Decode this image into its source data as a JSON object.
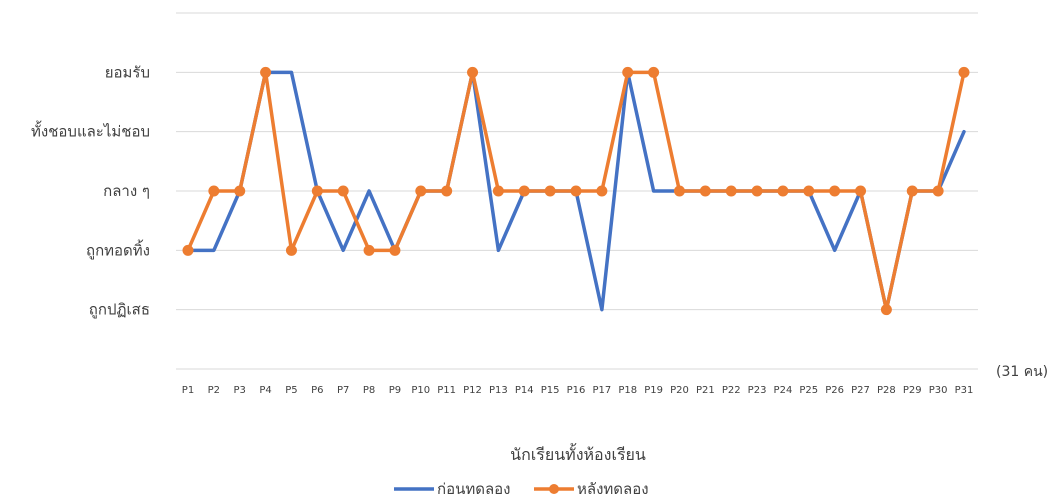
{
  "chart_data": {
    "type": "line",
    "xlabel": "นักเรียนทั้งห้องเรียน",
    "unit_note": "(31 คน)",
    "categories": [
      "P1",
      "P2",
      "P3",
      "P4",
      "P5",
      "P6",
      "P7",
      "P8",
      "P9",
      "P10",
      "P11",
      "P12",
      "P13",
      "P14",
      "P15",
      "P16",
      "P17",
      "P18",
      "P19",
      "P20",
      "P21",
      "P22",
      "P23",
      "P24",
      "P25",
      "P26",
      "P27",
      "P28",
      "P29",
      "P30",
      "P31"
    ],
    "y_levels": [
      "ถูกปฏิเสธ",
      "ถูกทอดทิ้ง",
      "กลาง ๆ",
      "ทั้งชอบและไม่ชอบ",
      "ยอมรับ"
    ],
    "ylim": [
      0,
      6
    ],
    "grid": true,
    "legend_position": "bottom",
    "series": [
      {
        "name": "ก่อนทดลอง",
        "color": "#4472C4",
        "markers": false,
        "values": [
          2,
          2,
          3,
          5,
          5,
          3,
          2,
          3,
          2,
          3,
          3,
          5,
          2,
          3,
          3,
          3,
          1,
          5,
          3,
          3,
          3,
          3,
          3,
          3,
          3,
          2,
          3,
          1,
          3,
          3,
          4
        ]
      },
      {
        "name": "หลังทดลอง",
        "color": "#ED7D31",
        "markers": true,
        "values": [
          2,
          3,
          3,
          5,
          2,
          3,
          3,
          2,
          2,
          3,
          3,
          5,
          3,
          3,
          3,
          3,
          3,
          5,
          5,
          3,
          3,
          3,
          3,
          3,
          3,
          3,
          3,
          1,
          3,
          3,
          5
        ]
      }
    ]
  }
}
